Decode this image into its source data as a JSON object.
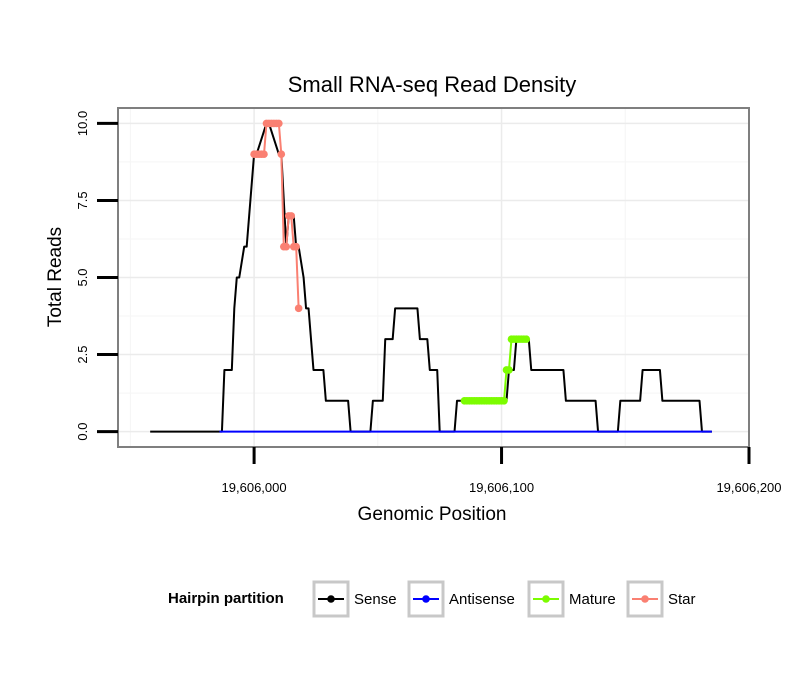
{
  "chart_data": {
    "type": "line",
    "title": "Small RNA-seq Read Density",
    "xlabel": "Genomic Position",
    "ylabel": "Total Reads",
    "xlim": [
      19605945,
      19606200
    ],
    "ylim": [
      -0.5,
      10.5
    ],
    "x_ticks": [
      19606000,
      19606100,
      19606200
    ],
    "x_tick_labels": [
      "19,606,000",
      "19,606,100",
      "19,606,200"
    ],
    "y_ticks": [
      0,
      2.5,
      5,
      7.5,
      10
    ],
    "y_tick_labels": [
      "0.0",
      "2.5",
      "5.0",
      "7.5",
      "10.0"
    ],
    "grid": true,
    "legend": {
      "title": "Hairpin partition",
      "position": "bottom",
      "entries": [
        {
          "name": "Sense",
          "color": "#000000"
        },
        {
          "name": "Antisense",
          "color": "#0000ff"
        },
        {
          "name": "Mature",
          "color": "#7cfc00"
        },
        {
          "name": "Star",
          "color": "#fa8072"
        }
      ]
    },
    "series": [
      {
        "name": "Sense",
        "color": "#000000",
        "x": [
          19605958,
          19605987,
          19605988,
          19605991,
          19605992,
          19605993,
          19605994,
          19605996,
          19605997,
          19606000,
          19606001,
          19606005,
          19606006,
          19606010,
          19606011,
          19606013,
          19606014,
          19606016,
          19606017,
          19606018,
          19606020,
          19606021,
          19606022,
          19606023,
          19606024,
          19606025,
          19606026,
          19606028,
          19606029,
          19606038,
          19606039,
          19606047,
          19606048,
          19606052,
          19606053,
          19606056,
          19606057,
          19606066,
          19606067,
          19606070,
          19606071,
          19606074,
          19606075,
          19606081,
          19606082,
          19606086,
          19606087,
          19606102,
          19606103,
          19606105,
          19606106,
          19606111,
          19606112,
          19606125,
          19606126,
          19606138,
          19606139,
          19606147,
          19606148,
          19606156,
          19606157,
          19606164,
          19606165,
          19606168,
          19606169,
          19606180,
          19606181,
          19606185
        ],
        "y": [
          0,
          0,
          2,
          2,
          4,
          5,
          5,
          6,
          6,
          9,
          9,
          10,
          10,
          9,
          9,
          6,
          7,
          7,
          6,
          6,
          5,
          4,
          4,
          3,
          2,
          2,
          2,
          2,
          1,
          1,
          0,
          0,
          1,
          1,
          3,
          3,
          4,
          4,
          3,
          3,
          2,
          2,
          0,
          0,
          1,
          1,
          1,
          1,
          2,
          2,
          3,
          3,
          2,
          2,
          1,
          1,
          0,
          0,
          1,
          1,
          2,
          2,
          1,
          1,
          1,
          1,
          0,
          0
        ]
      },
      {
        "name": "Antisense",
        "color": "#0000ff",
        "x": [
          19605986,
          19606185
        ],
        "y": [
          0,
          0
        ]
      },
      {
        "name": "Mature",
        "color": "#7cfc00",
        "x": [
          19606085,
          19606086,
          19606087,
          19606088,
          19606089,
          19606090,
          19606091,
          19606092,
          19606093,
          19606094,
          19606095,
          19606096,
          19606097,
          19606098,
          19606099,
          19606100,
          19606101,
          19606102,
          19606103,
          19606104,
          19606105,
          19606106,
          19606107,
          19606108,
          19606109,
          19606110
        ],
        "y": [
          1,
          1,
          1,
          1,
          1,
          1,
          1,
          1,
          1,
          1,
          1,
          1,
          1,
          1,
          1,
          1,
          1,
          2,
          2,
          3,
          3,
          3,
          3,
          3,
          3,
          3
        ]
      },
      {
        "name": "Star",
        "color": "#fa8072",
        "x": [
          19606000,
          19606001,
          19606002,
          19606003,
          19606004,
          19606005,
          19606006,
          19606007,
          19606008,
          19606009,
          19606010,
          19606011,
          19606012,
          19606013,
          19606014,
          19606015,
          19606016,
          19606017,
          19606018
        ],
        "y": [
          9,
          9,
          9,
          9,
          9,
          10,
          10,
          10,
          10,
          10,
          10,
          9,
          6,
          6,
          7,
          7,
          6,
          6,
          4
        ]
      }
    ]
  }
}
